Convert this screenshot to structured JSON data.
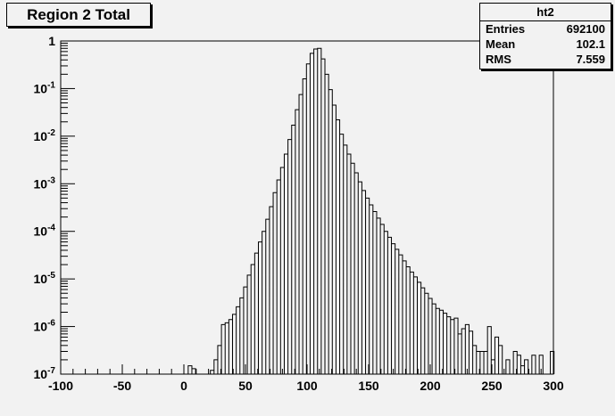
{
  "window": {
    "title": "Region 2 Total"
  },
  "stats": {
    "name": "ht2",
    "rows": [
      {
        "label": "Entries",
        "value": "692100"
      },
      {
        "label": "Mean",
        "value": "102.1"
      },
      {
        "label": "RMS",
        "value": "7.559"
      }
    ]
  },
  "chart_data": {
    "type": "histogram",
    "title": "Region 2 Total",
    "xlabel": "",
    "ylabel": "",
    "xlim": [
      -100,
      300
    ],
    "ylim": [
      1e-07,
      1
    ],
    "yscale": "log",
    "x_ticks": [
      "-100",
      "-50",
      "0",
      "50",
      "100",
      "150",
      "200",
      "250",
      "300"
    ],
    "y_ticks": [
      "10-7",
      "10-6",
      "10-5",
      "10-4",
      "10-3",
      "10-2",
      "10-1",
      "1"
    ],
    "bin_width": 3,
    "bins": [
      {
        "x": 5,
        "y": 1.5e-07
      },
      {
        "x": 8,
        "y": 1.3e-07
      },
      {
        "x": 23,
        "y": 1.2e-07
      },
      {
        "x": 26,
        "y": 2e-07
      },
      {
        "x": 29,
        "y": 4e-07
      },
      {
        "x": 32,
        "y": 1.1e-06
      },
      {
        "x": 35,
        "y": 1.2e-06
      },
      {
        "x": 38,
        "y": 1.4e-06
      },
      {
        "x": 41,
        "y": 1.8e-06
      },
      {
        "x": 44,
        "y": 2.6e-06
      },
      {
        "x": 47,
        "y": 4e-06
      },
      {
        "x": 50,
        "y": 6.8e-06
      },
      {
        "x": 53,
        "y": 1.2e-05
      },
      {
        "x": 56,
        "y": 2e-05
      },
      {
        "x": 59,
        "y": 3.5e-05
      },
      {
        "x": 62,
        "y": 6e-05
      },
      {
        "x": 65,
        "y": 0.0001
      },
      {
        "x": 68,
        "y": 0.00018
      },
      {
        "x": 71,
        "y": 0.00033
      },
      {
        "x": 74,
        "y": 0.00065
      },
      {
        "x": 77,
        "y": 0.0012
      },
      {
        "x": 80,
        "y": 0.0022
      },
      {
        "x": 83,
        "y": 0.0042
      },
      {
        "x": 86,
        "y": 0.0085
      },
      {
        "x": 89,
        "y": 0.017
      },
      {
        "x": 92,
        "y": 0.036
      },
      {
        "x": 95,
        "y": 0.075
      },
      {
        "x": 98,
        "y": 0.16
      },
      {
        "x": 101,
        "y": 0.33
      },
      {
        "x": 104,
        "y": 0.55
      },
      {
        "x": 107,
        "y": 0.68
      },
      {
        "x": 110,
        "y": 0.7
      },
      {
        "x": 113,
        "y": 0.42
      },
      {
        "x": 116,
        "y": 0.2
      },
      {
        "x": 119,
        "y": 0.095
      },
      {
        "x": 122,
        "y": 0.045
      },
      {
        "x": 125,
        "y": 0.022
      },
      {
        "x": 128,
        "y": 0.011
      },
      {
        "x": 131,
        "y": 0.0065
      },
      {
        "x": 134,
        "y": 0.0042
      },
      {
        "x": 137,
        "y": 0.0027
      },
      {
        "x": 140,
        "y": 0.0017
      },
      {
        "x": 143,
        "y": 0.0011
      },
      {
        "x": 146,
        "y": 0.00072
      },
      {
        "x": 149,
        "y": 0.0005
      },
      {
        "x": 152,
        "y": 0.00036
      },
      {
        "x": 155,
        "y": 0.00026
      },
      {
        "x": 158,
        "y": 0.00019
      },
      {
        "x": 161,
        "y": 0.00014
      },
      {
        "x": 164,
        "y": 0.0001
      },
      {
        "x": 167,
        "y": 7.5e-05
      },
      {
        "x": 170,
        "y": 5.5e-05
      },
      {
        "x": 173,
        "y": 4.2e-05
      },
      {
        "x": 176,
        "y": 3.2e-05
      },
      {
        "x": 179,
        "y": 2.4e-05
      },
      {
        "x": 182,
        "y": 1.8e-05
      },
      {
        "x": 185,
        "y": 1.4e-05
      },
      {
        "x": 188,
        "y": 1.1e-05
      },
      {
        "x": 191,
        "y": 8.5e-06
      },
      {
        "x": 194,
        "y": 6.5e-06
      },
      {
        "x": 197,
        "y": 5e-06
      },
      {
        "x": 200,
        "y": 3.9e-06
      },
      {
        "x": 203,
        "y": 3e-06
      },
      {
        "x": 206,
        "y": 2.4e-06
      },
      {
        "x": 209,
        "y": 2.2e-06
      },
      {
        "x": 212,
        "y": 1.9e-06
      },
      {
        "x": 215,
        "y": 1.6e-06
      },
      {
        "x": 218,
        "y": 1.4e-06
      },
      {
        "x": 221,
        "y": 1.5e-06
      },
      {
        "x": 224,
        "y": 7e-07
      },
      {
        "x": 227,
        "y": 9e-07
      },
      {
        "x": 230,
        "y": 1.1e-06
      },
      {
        "x": 233,
        "y": 8e-07
      },
      {
        "x": 236,
        "y": 4e-07
      },
      {
        "x": 239,
        "y": 3e-07
      },
      {
        "x": 242,
        "y": 3e-07
      },
      {
        "x": 245,
        "y": 3e-07
      },
      {
        "x": 248,
        "y": 1e-06
      },
      {
        "x": 251,
        "y": 2e-07
      },
      {
        "x": 254,
        "y": 6e-07
      },
      {
        "x": 257,
        "y": 4e-07
      },
      {
        "x": 260,
        "y": 1e-07
      },
      {
        "x": 263,
        "y": 2e-07
      },
      {
        "x": 266,
        "y": 1e-07
      },
      {
        "x": 269,
        "y": 3e-07
      },
      {
        "x": 272,
        "y": 2.5e-07
      },
      {
        "x": 275,
        "y": 1.5e-07
      },
      {
        "x": 278,
        "y": 2e-07
      },
      {
        "x": 281,
        "y": 1e-07
      },
      {
        "x": 284,
        "y": 2.5e-07
      },
      {
        "x": 287,
        "y": 1e-07
      },
      {
        "x": 290,
        "y": 2.5e-07
      },
      {
        "x": 293,
        "y": 1e-07
      },
      {
        "x": 296,
        "y": 1e-07
      },
      {
        "x": 299,
        "y": 3e-07
      }
    ]
  }
}
